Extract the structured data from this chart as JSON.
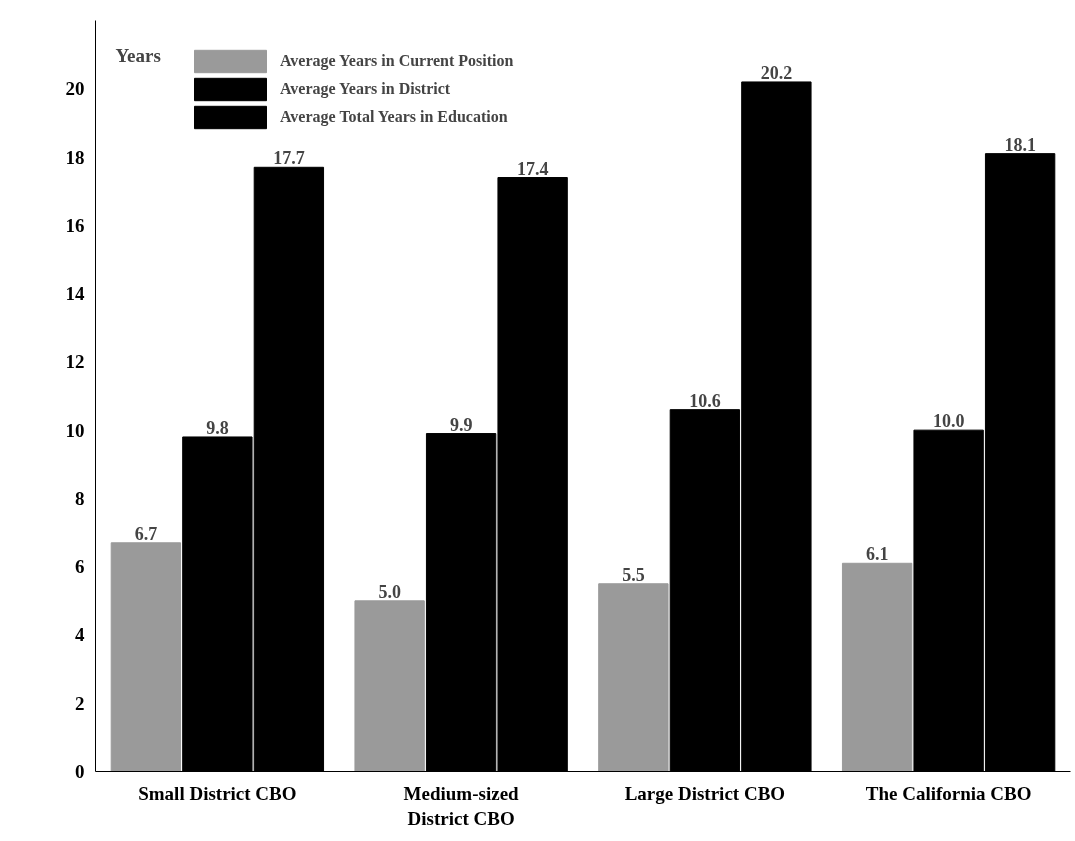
{
  "chart_data": {
    "type": "bar",
    "ylabel": "Years",
    "categories": [
      "Small District CBO",
      "Medium-sized\nDistrict CBO",
      "Large District CBO",
      "The California CBO"
    ],
    "series": [
      {
        "name": "Average Years in Current Position",
        "color": "#9a9a9a",
        "values": [
          6.7,
          5.0,
          5.5,
          6.1
        ],
        "value_labels": [
          "6.7",
          "5.0",
          "5.5",
          "6.1"
        ]
      },
      {
        "name": "Average Years in District",
        "color": "#000000",
        "values": [
          9.8,
          9.9,
          10.6,
          10.0
        ],
        "value_labels": [
          "9.8",
          "9.9",
          "10.6",
          "10.0"
        ]
      },
      {
        "name": "Average Total Years in Education",
        "color": "#000000",
        "values": [
          17.7,
          17.4,
          20.2,
          18.1
        ],
        "value_labels": [
          "17.7",
          "17.4",
          "20.2",
          "18.1"
        ]
      }
    ],
    "ylim": [
      0,
      22
    ],
    "yticks": [
      0,
      2,
      4,
      6,
      8,
      10,
      12,
      14,
      16,
      18,
      20
    ],
    "grid": false,
    "legend": "top left"
  }
}
